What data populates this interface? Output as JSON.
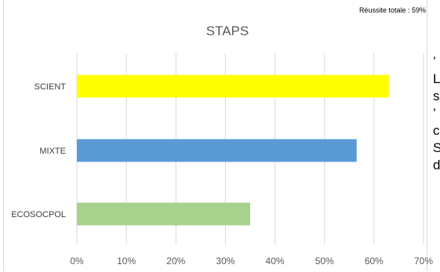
{
  "note": "Réussite totale : 59%",
  "side_fragments": [
    "’",
    "L",
    "s",
    "’",
    "c",
    "S",
    "d"
  ],
  "chart_data": {
    "type": "bar",
    "orientation": "horizontal",
    "title": "STAPS",
    "categories": [
      "SCIENT",
      "MIXTE",
      "ECOSOCPOL"
    ],
    "values": [
      63,
      56.5,
      35
    ],
    "colors": [
      "#ffff00",
      "#5b9bd5",
      "#a9d18e"
    ],
    "xlim": [
      0,
      70
    ],
    "xticks": [
      "0%",
      "10%",
      "20%",
      "30%",
      "40%",
      "50%",
      "60%",
      "70%"
    ],
    "tick_values": [
      0,
      10,
      20,
      30,
      40,
      50,
      60,
      70
    ],
    "grid": true,
    "legend": "none"
  }
}
